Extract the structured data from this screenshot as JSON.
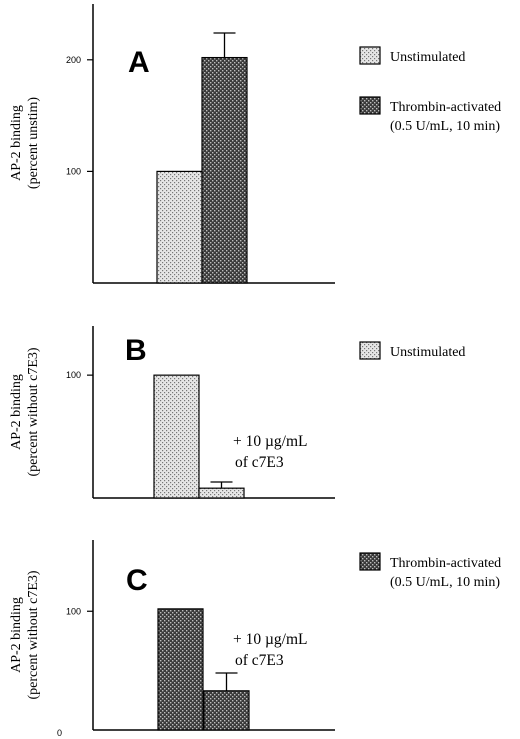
{
  "figure": {
    "panels": [
      "A",
      "B",
      "C"
    ]
  },
  "colors": {
    "unstimulated": "light-stipple-gray",
    "thrombin_activated": "dark-stipple-gray"
  },
  "chart_data": [
    {
      "type": "bar",
      "panel_label": "A",
      "ylabel_lines": [
        "AP-2 binding",
        "(percent unstim)"
      ],
      "ylim": [
        0,
        250
      ],
      "yticks": [
        100,
        200
      ],
      "series": [
        {
          "name": "Unstimulated",
          "value": 100,
          "error": null,
          "fill": "light"
        },
        {
          "name": "Thrombin-activated",
          "name_line2": "(0.5 U/mL, 10 min)",
          "value": 202,
          "error": 22,
          "fill": "dark"
        }
      ],
      "annotation_lines": []
    },
    {
      "type": "bar",
      "panel_label": "B",
      "ylabel_lines": [
        "AP-2 binding",
        "(percent without c7E3)"
      ],
      "ylim": [
        0,
        140
      ],
      "yticks": [
        100
      ],
      "series": [
        {
          "name": "Unstimulated",
          "value": 100,
          "error": null,
          "fill": "light"
        },
        {
          "name": "",
          "value": 8,
          "error": 5,
          "fill": "light"
        }
      ],
      "annotation_lines": [
        "+ 10 µg/mL",
        "of  c7E3"
      ]
    },
    {
      "type": "bar",
      "panel_label": "C",
      "ylabel_lines": [
        "AP-2 binding",
        "(percent without c7E3)"
      ],
      "ylim": [
        0,
        160
      ],
      "yticks": [
        0,
        100
      ],
      "series": [
        {
          "name": "Thrombin-activated",
          "name_line2": "(0.5 U/mL, 10 min)",
          "value": 102,
          "error": null,
          "fill": "dark"
        },
        {
          "name": "",
          "value": 33,
          "error": 15,
          "fill": "dark"
        }
      ],
      "annotation_lines": [
        "+ 10 µg/mL",
        "of  c7E3"
      ]
    }
  ]
}
